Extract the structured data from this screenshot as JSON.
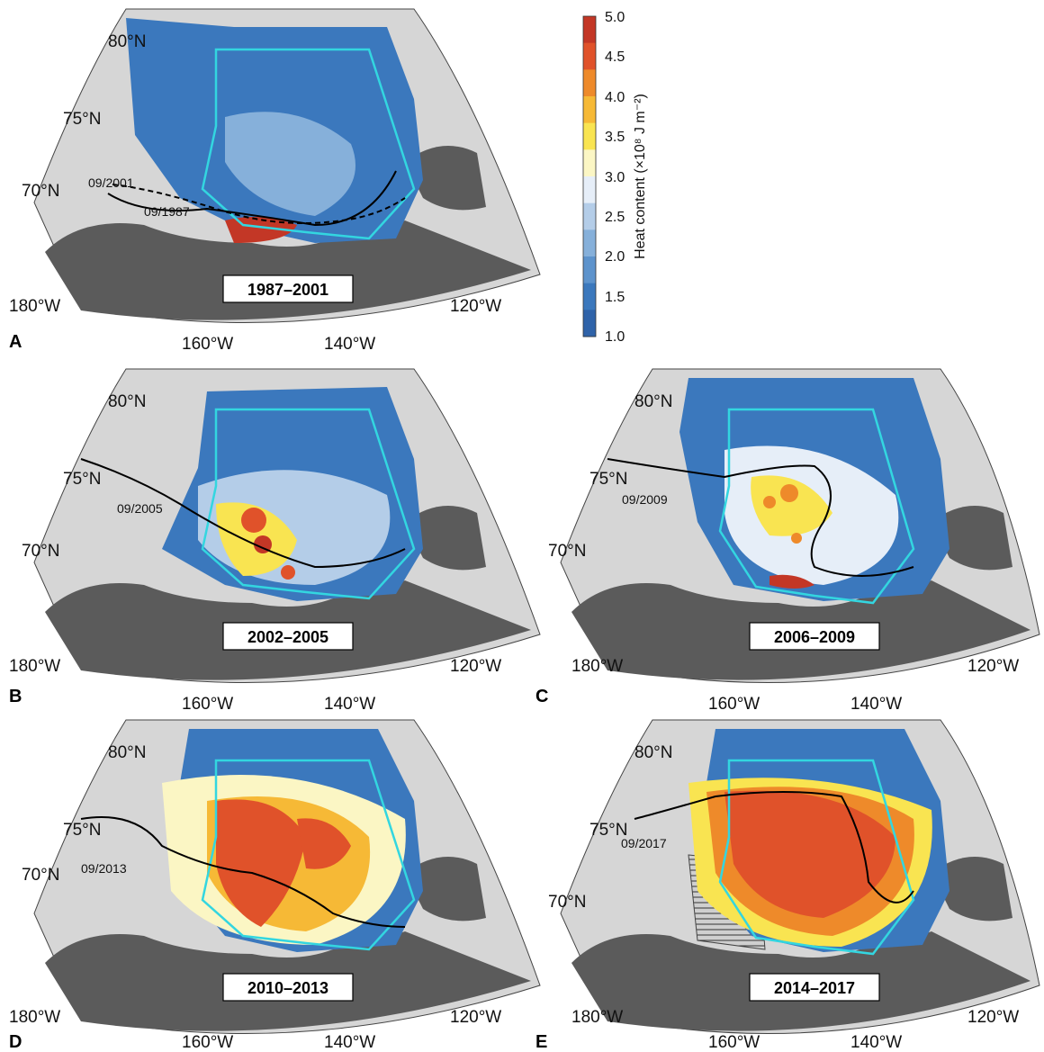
{
  "colors": {
    "ocean": "#d6d6d6",
    "land": "#5b5b5b",
    "box": "#33d6e0",
    "contour": "#000000",
    "scale": [
      "#2f63a9",
      "#3b78bd",
      "#5d93cc",
      "#86b0da",
      "#b4cde8",
      "#e6eef8",
      "#fbf6c4",
      "#f9e451",
      "#f6b936",
      "#ee8a2a",
      "#e0522a",
      "#c33726"
    ]
  },
  "colorbar": {
    "title": "Heat content (×10⁸ J m⁻²)",
    "ticks": [
      "5.0",
      "4.5",
      "4.0",
      "3.5",
      "3.0",
      "2.5",
      "2.0",
      "1.5",
      "1.0"
    ]
  },
  "panels": [
    {
      "letter": "A",
      "period": "1987–2001",
      "lat_labels": [
        "80°N",
        "75°N",
        "70°N"
      ],
      "lon_labels": [
        "180°W",
        "160°W",
        "140°W",
        "120°W"
      ],
      "contour_labels": [
        "09/2001",
        "09/1987"
      ]
    },
    {
      "letter": "B",
      "period": "2002–2005",
      "lat_labels": [
        "80°N",
        "75°N",
        "70°N"
      ],
      "lon_labels": [
        "180°W",
        "160°W",
        "140°W",
        "120°W"
      ],
      "contour_labels": [
        "09/2005"
      ]
    },
    {
      "letter": "C",
      "period": "2006–2009",
      "lat_labels": [
        "80°N",
        "75°N",
        "70°N"
      ],
      "lon_labels": [
        "180°W",
        "160°W",
        "140°W",
        "120°W"
      ],
      "contour_labels": [
        "09/2009"
      ]
    },
    {
      "letter": "D",
      "period": "2010–2013",
      "lat_labels": [
        "80°N",
        "75°N",
        "70°N"
      ],
      "lon_labels": [
        "180°W",
        "160°W",
        "140°W",
        "120°W"
      ],
      "contour_labels": [
        "09/2013"
      ]
    },
    {
      "letter": "E",
      "period": "2014–2017",
      "lat_labels": [
        "80°N",
        "75°N",
        "70°N"
      ],
      "lon_labels": [
        "180°W",
        "160°W",
        "140°W",
        "120°W"
      ],
      "contour_labels": [
        "09/2017"
      ]
    }
  ]
}
